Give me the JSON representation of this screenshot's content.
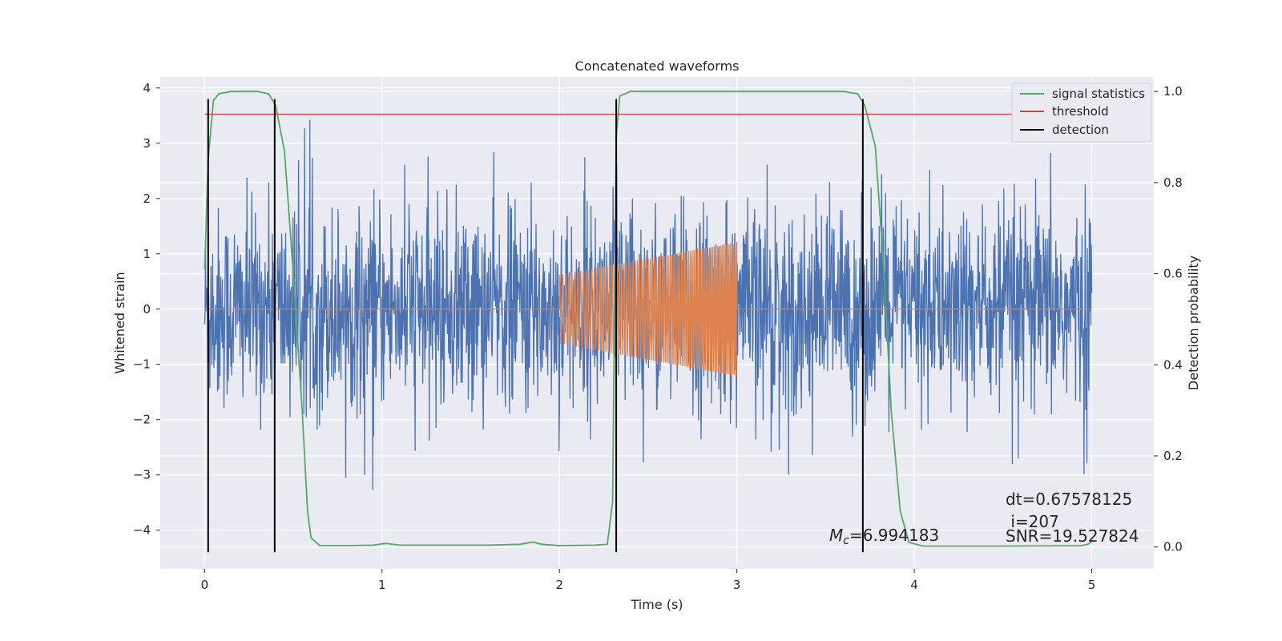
{
  "chart_data": {
    "type": "line",
    "title": "Concatenated waveforms",
    "xlabel": "Time (s)",
    "ylabel": "Whitened strain",
    "y2label": "Detection probability",
    "xlim": [
      -0.25,
      5.35
    ],
    "ylim": [
      -4.7,
      4.2
    ],
    "y2lim": [
      -0.048,
      1.032
    ],
    "xticks": [
      0,
      1,
      2,
      3,
      4,
      5
    ],
    "yticks": [
      -4,
      -3,
      -2,
      -1,
      0,
      1,
      2,
      3,
      4
    ],
    "y2ticks": [
      0.0,
      0.2,
      0.4,
      0.6,
      0.8,
      1.0
    ],
    "xtick_labels": [
      "0",
      "1",
      "2",
      "3",
      "4",
      "5"
    ],
    "ytick_labels": [
      "−4",
      "−3",
      "−2",
      "−1",
      "0",
      "1",
      "2",
      "3",
      "4"
    ],
    "y2tick_labels": [
      "0.0",
      "0.2",
      "0.4",
      "0.6",
      "0.8",
      "1.0"
    ],
    "grid": true,
    "legend_position": "top-right",
    "legend": [
      "signal statistics",
      "threshold",
      "detection"
    ],
    "colors": {
      "strain": "#4c72b0",
      "injection": "#dd8452",
      "signal_statistics": "#55a868",
      "threshold": "#c44e52",
      "detection": "#000000",
      "background": "#eaeaf2",
      "grid": "#ffffff"
    },
    "series": [
      {
        "axis": "left",
        "duration": [
          0,
          5.0
        ],
        "amplitude_sigma": 0.9,
        "peak_extremes": [
          3.5,
          -3.4
        ]
      },
      {
        "axis": "left",
        "chirp_window": [
          2.0,
          3.0
        ],
        "amplitude_start": 0.62,
        "amplitude_end": 1.22
      },
      {
        "name": "signal statistics",
        "axis": "right",
        "points": [
          [
            0.0,
            0.61
          ],
          [
            0.02,
            0.85
          ],
          [
            0.05,
            0.98
          ],
          [
            0.08,
            0.995
          ],
          [
            0.15,
            1.0
          ],
          [
            0.3,
            1.0
          ],
          [
            0.36,
            0.995
          ],
          [
            0.4,
            0.97
          ],
          [
            0.45,
            0.87
          ],
          [
            0.5,
            0.6
          ],
          [
            0.55,
            0.3
          ],
          [
            0.58,
            0.08
          ],
          [
            0.6,
            0.02
          ],
          [
            0.65,
            0.003
          ],
          [
            0.8,
            0.003
          ],
          [
            0.95,
            0.004
          ],
          [
            1.02,
            0.008
          ],
          [
            1.1,
            0.004
          ],
          [
            1.3,
            0.004
          ],
          [
            1.6,
            0.004
          ],
          [
            1.78,
            0.006
          ],
          [
            1.85,
            0.011
          ],
          [
            1.9,
            0.006
          ],
          [
            2.0,
            0.003
          ],
          [
            2.2,
            0.004
          ],
          [
            2.27,
            0.006
          ],
          [
            2.3,
            0.1
          ],
          [
            2.32,
            0.9
          ],
          [
            2.34,
            0.99
          ],
          [
            2.4,
            1.0
          ],
          [
            3.6,
            1.0
          ],
          [
            3.68,
            0.995
          ],
          [
            3.72,
            0.97
          ],
          [
            3.78,
            0.88
          ],
          [
            3.83,
            0.6
          ],
          [
            3.87,
            0.3
          ],
          [
            3.92,
            0.08
          ],
          [
            3.97,
            0.01
          ],
          [
            4.05,
            0.002
          ],
          [
            4.5,
            0.002
          ],
          [
            4.94,
            0.003
          ],
          [
            4.98,
            0.006
          ],
          [
            5.0,
            0.012
          ]
        ]
      },
      {
        "name": "threshold",
        "axis": "right",
        "points": [
          [
            0.0,
            0.95
          ],
          [
            5.0,
            0.95
          ]
        ]
      },
      {
        "name": "detection",
        "axis": "left",
        "vlines": [
          0.02,
          0.395,
          2.32,
          3.71
        ],
        "ymin": -4.4,
        "ymax": 3.8
      }
    ],
    "annotations": {
      "mc_label": "=6.994183",
      "dt_label": "dt=0.67578125",
      "i_label": " i=207",
      "snr_label": "SNR=19.527824"
    }
  }
}
